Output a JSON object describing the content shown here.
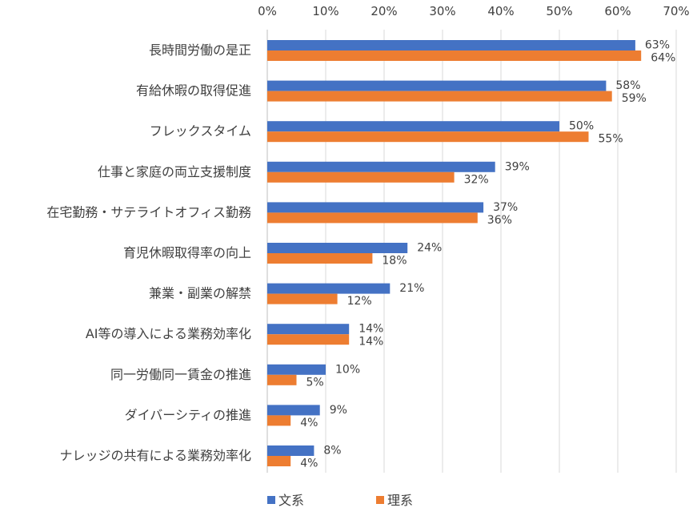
{
  "chart_data": {
    "type": "bar",
    "orientation": "horizontal",
    "categories": [
      "長時間労働の是正",
      "有給休暇の取得促進",
      "フレックスタイム",
      "仕事と家庭の両立支援制度",
      "在宅勤務・サテライトオフィス勤務",
      "育児休暇取得率の向上",
      "兼業・副業の解禁",
      "AI等の導入による業務効率化",
      "同一労働同一賃金の推進",
      "ダイバーシティの推進",
      "ナレッジの共有による業務効率化"
    ],
    "series": [
      {
        "name": "文系",
        "color": "#4472C4",
        "values": [
          63,
          58,
          50,
          39,
          37,
          24,
          21,
          14,
          10,
          9,
          8
        ]
      },
      {
        "name": "理系",
        "color": "#ED7D31",
        "values": [
          64,
          59,
          55,
          32,
          36,
          18,
          12,
          14,
          5,
          4,
          4
        ]
      }
    ],
    "value_unit": "%",
    "xlim": [
      0,
      70
    ],
    "x_ticks": [
      "0%",
      "10%",
      "20%",
      "30%",
      "40%",
      "50%",
      "60%",
      "70%"
    ],
    "x_axis_position": "top",
    "grid": "vertical",
    "legend_position": "bottom"
  }
}
